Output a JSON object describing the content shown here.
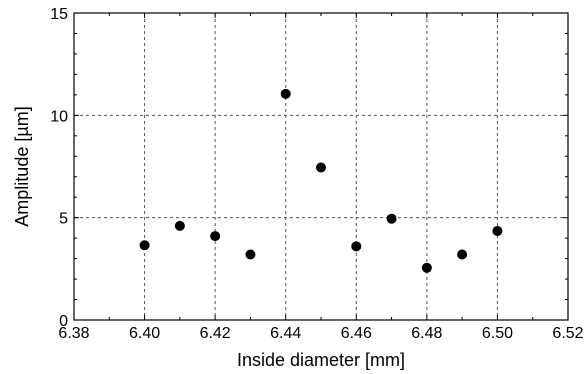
{
  "chart_data": {
    "type": "scatter",
    "xlabel": "Inside diameter [mm]",
    "ylabel": "Amplitude [µm]",
    "xlim": [
      6.38,
      6.52
    ],
    "ylim": [
      0,
      15
    ],
    "xticks": [
      "6.38",
      "6.40",
      "6.42",
      "6.44",
      "6.46",
      "6.48",
      "6.50",
      "6.52"
    ],
    "yticks": [
      "0",
      "5",
      "10",
      "15"
    ],
    "grid": true,
    "marker_color": "#000000",
    "series": [
      {
        "x": [
          6.4,
          6.41,
          6.42,
          6.43,
          6.44,
          6.45,
          6.46,
          6.47,
          6.48,
          6.49,
          6.5
        ],
        "y": [
          3.65,
          4.6,
          4.1,
          3.2,
          11.05,
          7.45,
          3.6,
          4.95,
          2.55,
          3.2,
          4.35
        ]
      }
    ]
  }
}
